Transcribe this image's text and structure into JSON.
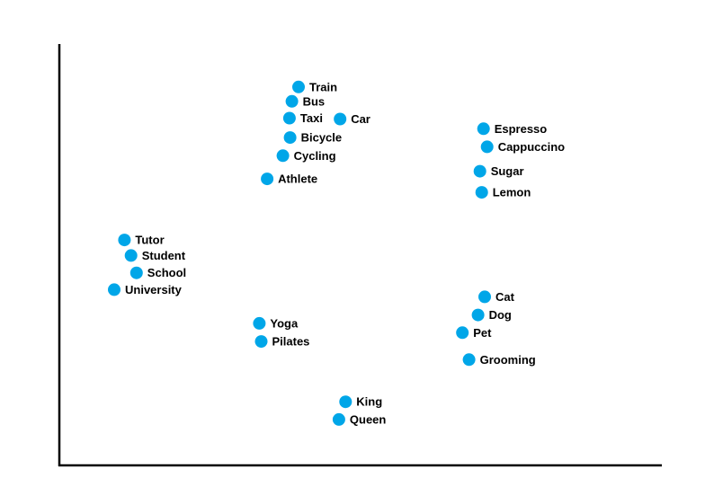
{
  "chart_data": {
    "type": "scatter",
    "title": "",
    "xlabel": "",
    "ylabel": "",
    "xlim": [
      0,
      100
    ],
    "ylim": [
      0,
      100
    ],
    "grid": false,
    "point_color": "#00a6e8",
    "axis_color": "#000000",
    "points": [
      {
        "label": "Train",
        "x": 39.7,
        "y": 89.8
      },
      {
        "label": "Bus",
        "x": 38.6,
        "y": 86.4
      },
      {
        "label": "Taxi",
        "x": 38.2,
        "y": 82.4
      },
      {
        "label": "Car",
        "x": 46.6,
        "y": 82.2
      },
      {
        "label": "Bicycle",
        "x": 38.3,
        "y": 77.8
      },
      {
        "label": "Cycling",
        "x": 37.1,
        "y": 73.5
      },
      {
        "label": "Athlete",
        "x": 34.5,
        "y": 68.0
      },
      {
        "label": "Espresso",
        "x": 70.4,
        "y": 79.9
      },
      {
        "label": "Cappuccino",
        "x": 71.0,
        "y": 75.6
      },
      {
        "label": "Sugar",
        "x": 69.8,
        "y": 69.8
      },
      {
        "label": "Lemon",
        "x": 70.1,
        "y": 64.8
      },
      {
        "label": "Tutor",
        "x": 10.8,
        "y": 53.5
      },
      {
        "label": "Student",
        "x": 11.9,
        "y": 49.8
      },
      {
        "label": "School",
        "x": 12.8,
        "y": 45.7
      },
      {
        "label": "University",
        "x": 9.1,
        "y": 41.7
      },
      {
        "label": "Yoga",
        "x": 33.2,
        "y": 33.7
      },
      {
        "label": "Pilates",
        "x": 33.5,
        "y": 29.4
      },
      {
        "label": "Cat",
        "x": 70.6,
        "y": 40.0
      },
      {
        "label": "Dog",
        "x": 69.5,
        "y": 35.7
      },
      {
        "label": "Pet",
        "x": 66.9,
        "y": 31.5
      },
      {
        "label": "Grooming",
        "x": 68.0,
        "y": 25.1
      },
      {
        "label": "King",
        "x": 47.5,
        "y": 15.1
      },
      {
        "label": "Queen",
        "x": 46.4,
        "y": 10.9
      }
    ]
  }
}
